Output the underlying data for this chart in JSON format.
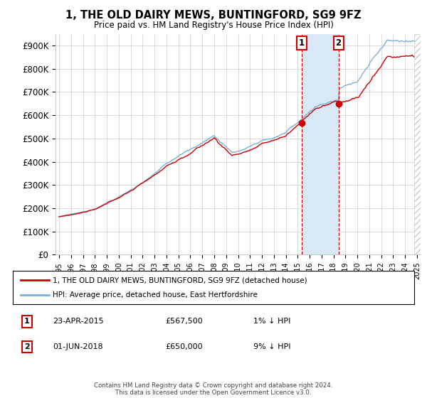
{
  "title": "1, THE OLD DAIRY MEWS, BUNTINGFORD, SG9 9FZ",
  "subtitle": "Price paid vs. HM Land Registry's House Price Index (HPI)",
  "legend_line1": "1, THE OLD DAIRY MEWS, BUNTINGFORD, SG9 9FZ (detached house)",
  "legend_line2": "HPI: Average price, detached house, East Hertfordshire",
  "transaction1_date": "23-APR-2015",
  "transaction1_price": "£567,500",
  "transaction1_hpi": "1% ↓ HPI",
  "transaction2_date": "01-JUN-2018",
  "transaction2_price": "£650,000",
  "transaction2_hpi": "9% ↓ HPI",
  "footer": "Contains HM Land Registry data © Crown copyright and database right 2024.\nThis data is licensed under the Open Government Licence v3.0.",
  "ylim": [
    0,
    950000
  ],
  "yticks": [
    0,
    100000,
    200000,
    300000,
    400000,
    500000,
    600000,
    700000,
    800000,
    900000
  ],
  "price_color": "#cc0000",
  "hpi_color": "#7bafd4",
  "marker1_x": 2015.32,
  "marker1_y": 567500,
  "marker2_x": 2018.42,
  "marker2_y": 650000,
  "shade_color": "#d8e8f5",
  "hatch_color": "#cccccc",
  "background_color": "#ffffff",
  "grid_color": "#cccccc",
  "xmin": 1994.7,
  "xmax": 2025.3,
  "hatch_start": 2024.75
}
